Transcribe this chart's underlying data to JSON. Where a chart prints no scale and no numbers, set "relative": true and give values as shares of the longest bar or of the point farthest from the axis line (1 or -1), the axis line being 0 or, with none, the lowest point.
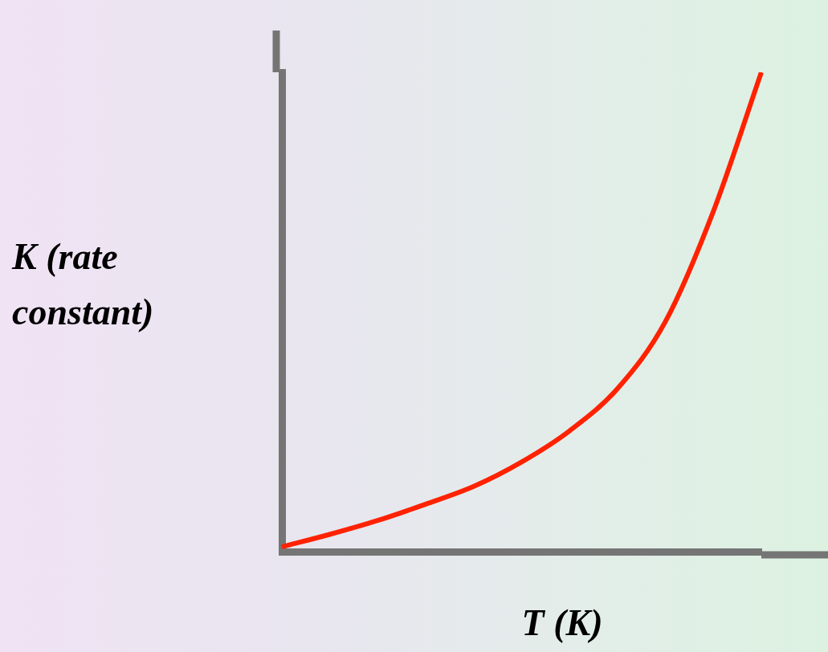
{
  "chart_data": {
    "type": "line",
    "xlabel": "T (K)",
    "ylabel": "K (rate constant)",
    "relative": true,
    "categories": [
      null,
      null,
      null,
      null,
      null,
      null,
      null,
      null,
      null,
      null,
      null
    ],
    "values": [
      0.01,
      0.036,
      0.065,
      0.099,
      0.136,
      0.187,
      0.252,
      0.34,
      0.48,
      0.71,
      1.0
    ],
    "color": "#ff2200"
  }
}
